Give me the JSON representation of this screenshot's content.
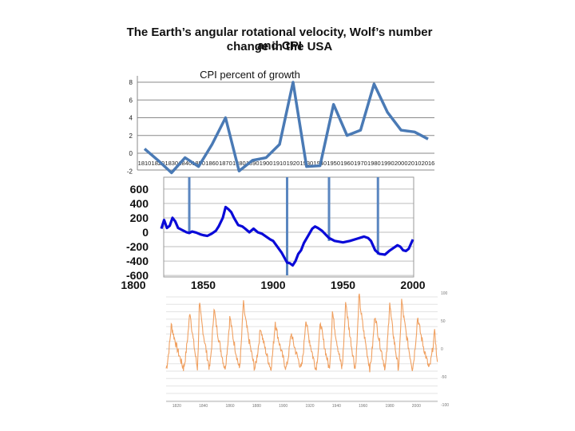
{
  "title_line1": "The Earth’s angular rotational velocity, Wolf’s number and CPI",
  "title_line2": "change in the USA",
  "chart_data": [
    {
      "type": "line",
      "title": "CPI percent of growth",
      "color": "#4a7ab5",
      "x": [
        1810,
        1820,
        1830,
        1840,
        1850,
        1860,
        1870,
        1880,
        1890,
        1900,
        1910,
        1920,
        1930,
        1940,
        1950,
        1960,
        1970,
        1980,
        1990,
        2000,
        2010,
        2016
      ],
      "values": [
        0.5,
        -0.8,
        -2.2,
        -0.5,
        -1.5,
        1.0,
        4.0,
        -2.0,
        -0.8,
        -0.5,
        1.0,
        8.0,
        -1.5,
        -1.4,
        5.5,
        2.0,
        2.6,
        7.8,
        4.6,
        2.6,
        2.4,
        1.6
      ],
      "x_tick_labels": [
        "1810",
        "1820",
        "1830",
        "1840",
        "1850",
        "1860",
        "1870",
        "1880",
        "1890",
        "1900",
        "1910",
        "1920",
        "1930",
        "1940",
        "1950",
        "1960",
        "1970",
        "1980",
        "1990",
        "2000",
        "2010",
        "2016"
      ],
      "y_tick_labels": [
        "-2",
        "0",
        "2",
        "4",
        "6",
        "8"
      ],
      "ylim": [
        -2,
        8
      ],
      "grid": true
    },
    {
      "type": "line",
      "color": "#0a0ad8",
      "x": [
        1820,
        1822,
        1824,
        1826,
        1828,
        1830,
        1832,
        1834,
        1836,
        1838,
        1840,
        1842,
        1845,
        1848,
        1850,
        1853,
        1856,
        1859,
        1861,
        1864,
        1866,
        1868,
        1870,
        1872,
        1875,
        1878,
        1880,
        1883,
        1886,
        1889,
        1892,
        1895,
        1898,
        1900,
        1903,
        1906,
        1908,
        1910,
        1912,
        1914,
        1916,
        1918,
        1920,
        1922,
        1925,
        1928,
        1930,
        1932,
        1935,
        1938,
        1940,
        1944,
        1950,
        1955,
        1960,
        1965,
        1968,
        1970,
        1973,
        1976,
        1980,
        1983,
        1986,
        1989,
        1991,
        1993,
        1995,
        1997,
        2000
      ],
      "values": [
        50,
        170,
        60,
        90,
        200,
        150,
        60,
        40,
        20,
        0,
        -10,
        10,
        -5,
        -30,
        -40,
        -50,
        -20,
        20,
        80,
        200,
        350,
        320,
        280,
        200,
        100,
        80,
        50,
        0,
        50,
        0,
        -20,
        -60,
        -100,
        -120,
        -200,
        -280,
        -350,
        -420,
        -430,
        -460,
        -400,
        -300,
        -250,
        -150,
        -50,
        50,
        80,
        60,
        20,
        -40,
        -80,
        -120,
        -140,
        -120,
        -90,
        -60,
        -80,
        -120,
        -250,
        -300,
        -310,
        -260,
        -220,
        -180,
        -200,
        -250,
        -260,
        -230,
        -100
      ],
      "x_tick_labels": [
        "1800",
        "1850",
        "1900",
        "1950",
        "2000"
      ],
      "y_tick_labels": [
        "600",
        "400",
        "200",
        "0",
        "-200",
        "-400",
        "-600"
      ],
      "xlim": [
        1800,
        2000
      ],
      "ylim": [
        -600,
        600
      ],
      "markers_x": [
        1840,
        1910,
        1940,
        1975
      ],
      "grid": true
    },
    {
      "type": "line",
      "color": "#f0a060",
      "x_tick_labels": [
        "1820",
        "1840",
        "1860",
        "1880",
        "1900",
        "1920",
        "1940",
        "1960",
        "1980",
        "2000"
      ],
      "y_tick_labels": [
        "100",
        "50",
        "0",
        "-50",
        "-100"
      ],
      "xlim": [
        1812,
        2016
      ],
      "ylim": [
        -100,
        100
      ],
      "series_note_peaks": [
        [
          1816,
          45
        ],
        [
          1830,
          70
        ],
        [
          1837,
          85
        ],
        [
          1848,
          75
        ],
        [
          1860,
          60
        ],
        [
          1870,
          85
        ],
        [
          1883,
          40
        ],
        [
          1894,
          50
        ],
        [
          1906,
          30
        ],
        [
          1917,
          55
        ],
        [
          1928,
          50
        ],
        [
          1937,
          70
        ],
        [
          1947,
          90
        ],
        [
          1957,
          100
        ],
        [
          1969,
          65
        ],
        [
          1980,
          85
        ],
        [
          1989,
          90
        ],
        [
          2001,
          60
        ],
        [
          2014,
          35
        ]
      ]
    }
  ]
}
